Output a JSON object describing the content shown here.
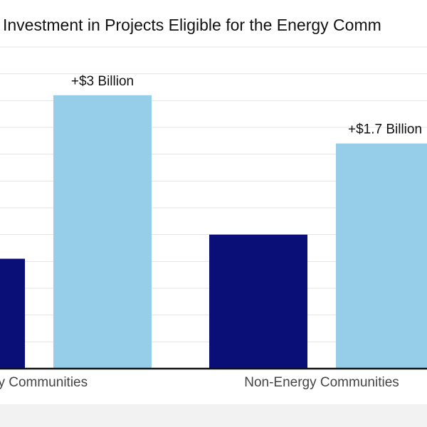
{
  "chart_data": {
    "type": "bar",
    "title": "Investment in Projects Eligible for the Energy Comm",
    "categories": [
      "gy Communities",
      "Non-Energy Communities"
    ],
    "series": [
      {
        "color": "#0a0f78",
        "values": [
          4.1,
          5.0
        ]
      },
      {
        "color": "#96cde8",
        "values": [
          10.2,
          8.4
        ]
      }
    ],
    "data_labels": [
      {
        "category_index": 0,
        "series_index": 1,
        "text": "+$3 Billion"
      },
      {
        "category_index": 1,
        "series_index": 1,
        "text": "+$1.7 Billion"
      }
    ],
    "ylim": [
      0,
      12
    ],
    "grid": true,
    "legend": "none"
  }
}
